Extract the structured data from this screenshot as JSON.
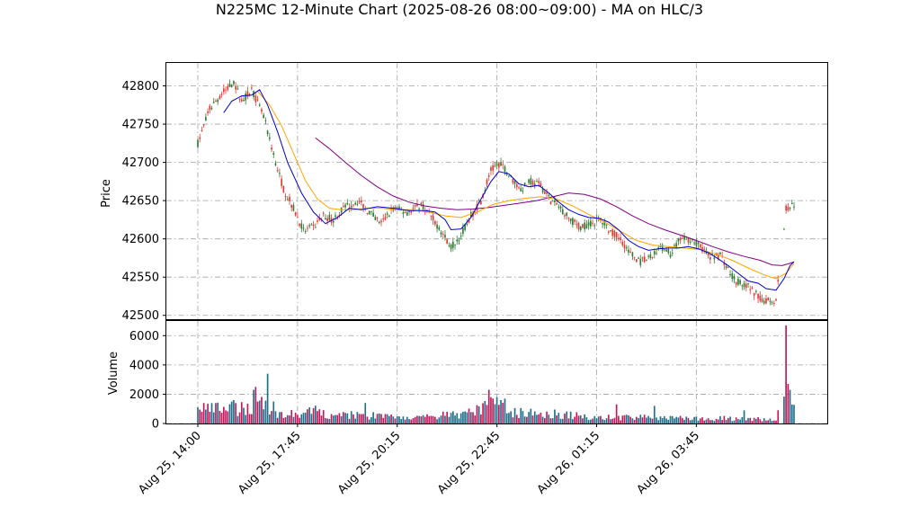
{
  "chart_data": {
    "type": "candlestick",
    "title": "N225MC 12-Minute Chart (2025-08-26 08:00~09:00) - MA on HLC/3",
    "ylabel_price": "Price",
    "ylabel_volume": "Volume",
    "price_ylim": [
      42495,
      42830
    ],
    "volume_ylim": [
      0,
      7000
    ],
    "price_ticks": [
      "42500",
      "42550",
      "42600",
      "42650",
      "42700",
      "42750",
      "42800"
    ],
    "volume_ticks": [
      "0",
      "2000",
      "4000",
      "6000"
    ],
    "x_ticks": [
      {
        "index": 0,
        "label": "Aug 25, 14:00"
      },
      {
        "index": 50,
        "label": "Aug 25, 17:45"
      },
      {
        "index": 100,
        "label": "Aug 25, 20:15"
      },
      {
        "index": 150,
        "label": "Aug 25, 22:45"
      },
      {
        "index": 200,
        "label": "Aug 26, 01:15"
      },
      {
        "index": 250,
        "label": "Aug 26, 03:45"
      }
    ],
    "bar_count": 300,
    "grid": true,
    "colors": {
      "up": "#2e7d32",
      "down": "#e53935",
      "volume_up": "#1f6f8b",
      "volume_down": "#c2185b",
      "ma_short": "#0000cc",
      "ma_mid": "#ffa500",
      "ma_long": "#800080"
    },
    "price_path": [
      [
        0,
        42725
      ],
      [
        6,
        42770
      ],
      [
        12,
        42790
      ],
      [
        18,
        42805
      ],
      [
        22,
        42780
      ],
      [
        27,
        42795
      ],
      [
        33,
        42760
      ],
      [
        38,
        42710
      ],
      [
        43,
        42665
      ],
      [
        48,
        42640
      ],
      [
        53,
        42610
      ],
      [
        58,
        42615
      ],
      [
        63,
        42630
      ],
      [
        68,
        42625
      ],
      [
        73,
        42640
      ],
      [
        80,
        42650
      ],
      [
        86,
        42635
      ],
      [
        92,
        42620
      ],
      [
        98,
        42640
      ],
      [
        105,
        42635
      ],
      [
        112,
        42645
      ],
      [
        117,
        42630
      ],
      [
        122,
        42610
      ],
      [
        127,
        42590
      ],
      [
        132,
        42605
      ],
      [
        137,
        42630
      ],
      [
        142,
        42650
      ],
      [
        147,
        42690
      ],
      [
        152,
        42700
      ],
      [
        157,
        42680
      ],
      [
        162,
        42665
      ],
      [
        167,
        42675
      ],
      [
        172,
        42670
      ],
      [
        177,
        42650
      ],
      [
        182,
        42640
      ],
      [
        187,
        42625
      ],
      [
        192,
        42615
      ],
      [
        197,
        42620
      ],
      [
        202,
        42625
      ],
      [
        207,
        42610
      ],
      [
        212,
        42600
      ],
      [
        217,
        42580
      ],
      [
        222,
        42570
      ],
      [
        227,
        42575
      ],
      [
        232,
        42590
      ],
      [
        237,
        42580
      ],
      [
        242,
        42600
      ],
      [
        247,
        42600
      ],
      [
        252,
        42590
      ],
      [
        257,
        42575
      ],
      [
        262,
        42580
      ],
      [
        266,
        42560
      ],
      [
        270,
        42545
      ],
      [
        275,
        42540
      ],
      [
        279,
        42530
      ],
      [
        283,
        42520
      ],
      [
        290,
        42520
      ],
      [
        295,
        42640
      ],
      [
        299,
        42645
      ]
    ],
    "ma_short": [
      [
        13,
        42765
      ],
      [
        17,
        42780
      ],
      [
        22,
        42787
      ],
      [
        27,
        42788
      ],
      [
        31,
        42795
      ],
      [
        35,
        42775
      ],
      [
        40,
        42740
      ],
      [
        45,
        42700
      ],
      [
        52,
        42660
      ],
      [
        58,
        42635
      ],
      [
        64,
        42620
      ],
      [
        70,
        42628
      ],
      [
        76,
        42640
      ],
      [
        82,
        42638
      ],
      [
        90,
        42642
      ],
      [
        98,
        42640
      ],
      [
        106,
        42637
      ],
      [
        114,
        42637
      ],
      [
        119,
        42635
      ],
      [
        124,
        42625
      ],
      [
        127,
        42612
      ],
      [
        132,
        42613
      ],
      [
        137,
        42628
      ],
      [
        142,
        42652
      ],
      [
        147,
        42675
      ],
      [
        151,
        42688
      ],
      [
        156,
        42685
      ],
      [
        161,
        42672
      ],
      [
        166,
        42668
      ],
      [
        171,
        42670
      ],
      [
        176,
        42660
      ],
      [
        181,
        42648
      ],
      [
        186,
        42638
      ],
      [
        191,
        42632
      ],
      [
        196,
        42628
      ],
      [
        201,
        42627
      ],
      [
        206,
        42622
      ],
      [
        211,
        42612
      ],
      [
        216,
        42598
      ],
      [
        221,
        42590
      ],
      [
        226,
        42585
      ],
      [
        231,
        42587
      ],
      [
        236,
        42588
      ],
      [
        241,
        42588
      ],
      [
        246,
        42590
      ],
      [
        251,
        42587
      ],
      [
        256,
        42582
      ],
      [
        261,
        42574
      ],
      [
        266,
        42565
      ],
      [
        271,
        42555
      ],
      [
        276,
        42545
      ],
      [
        281,
        42542
      ],
      [
        285,
        42535
      ],
      [
        290,
        42533
      ],
      [
        294,
        42548
      ],
      [
        297,
        42565
      ],
      [
        299,
        42570
      ]
    ],
    "ma_mid": [
      [
        30,
        42793
      ],
      [
        36,
        42775
      ],
      [
        42,
        42748
      ],
      [
        48,
        42712
      ],
      [
        54,
        42676
      ],
      [
        60,
        42652
      ],
      [
        66,
        42640
      ],
      [
        72,
        42638
      ],
      [
        78,
        42638
      ],
      [
        84,
        42640
      ],
      [
        92,
        42640
      ],
      [
        100,
        42638
      ],
      [
        108,
        42638
      ],
      [
        116,
        42635
      ],
      [
        124,
        42630
      ],
      [
        132,
        42628
      ],
      [
        140,
        42635
      ],
      [
        148,
        42645
      ],
      [
        156,
        42650
      ],
      [
        164,
        42653
      ],
      [
        172,
        42655
      ],
      [
        180,
        42652
      ],
      [
        188,
        42643
      ],
      [
        196,
        42632
      ],
      [
        204,
        42622
      ],
      [
        212,
        42610
      ],
      [
        220,
        42598
      ],
      [
        228,
        42592
      ],
      [
        236,
        42590
      ],
      [
        244,
        42588
      ],
      [
        252,
        42586
      ],
      [
        260,
        42580
      ],
      [
        268,
        42572
      ],
      [
        276,
        42562
      ],
      [
        284,
        42553
      ],
      [
        290,
        42548
      ],
      [
        295,
        42555
      ],
      [
        299,
        42568
      ]
    ],
    "ma_long": [
      [
        59,
        42732
      ],
      [
        66,
        42718
      ],
      [
        74,
        42700
      ],
      [
        82,
        42683
      ],
      [
        90,
        42668
      ],
      [
        98,
        42656
      ],
      [
        106,
        42648
      ],
      [
        114,
        42643
      ],
      [
        122,
        42640
      ],
      [
        130,
        42638
      ],
      [
        138,
        42639
      ],
      [
        146,
        42641
      ],
      [
        154,
        42644
      ],
      [
        162,
        42647
      ],
      [
        170,
        42650
      ],
      [
        178,
        42655
      ],
      [
        186,
        42660
      ],
      [
        194,
        42658
      ],
      [
        202,
        42652
      ],
      [
        210,
        42642
      ],
      [
        218,
        42630
      ],
      [
        226,
        42620
      ],
      [
        234,
        42612
      ],
      [
        242,
        42605
      ],
      [
        250,
        42598
      ],
      [
        258,
        42590
      ],
      [
        266,
        42583
      ],
      [
        274,
        42577
      ],
      [
        282,
        42572
      ],
      [
        288,
        42566
      ],
      [
        293,
        42565
      ],
      [
        297,
        42568
      ],
      [
        299,
        42570
      ]
    ],
    "volume_path": [
      [
        0,
        900
      ],
      [
        10,
        1000
      ],
      [
        20,
        1000
      ],
      [
        27,
        1200
      ],
      [
        30,
        2000
      ],
      [
        33,
        1200
      ],
      [
        38,
        700
      ],
      [
        45,
        600
      ],
      [
        55,
        700
      ],
      [
        60,
        900
      ],
      [
        65,
        500
      ],
      [
        80,
        600
      ],
      [
        90,
        500
      ],
      [
        100,
        450
      ],
      [
        110,
        350
      ],
      [
        120,
        500
      ],
      [
        125,
        600
      ],
      [
        130,
        550
      ],
      [
        140,
        900
      ],
      [
        146,
        1500
      ],
      [
        150,
        1300
      ],
      [
        155,
        800
      ],
      [
        165,
        700
      ],
      [
        175,
        700
      ],
      [
        185,
        600
      ],
      [
        195,
        450
      ],
      [
        205,
        400
      ],
      [
        215,
        450
      ],
      [
        225,
        400
      ],
      [
        235,
        350
      ],
      [
        245,
        350
      ],
      [
        255,
        320
      ],
      [
        265,
        350
      ],
      [
        275,
        280
      ],
      [
        285,
        300
      ],
      [
        290,
        300
      ],
      [
        295,
        2500
      ],
      [
        299,
        2000
      ]
    ],
    "volume_spikes": [
      [
        3,
        1400
      ],
      [
        18,
        1600
      ],
      [
        28,
        2300
      ],
      [
        29,
        2500
      ],
      [
        35,
        3400
      ],
      [
        38,
        1500
      ],
      [
        56,
        1100
      ],
      [
        84,
        1400
      ],
      [
        146,
        2300
      ],
      [
        150,
        1800
      ],
      [
        154,
        1700
      ],
      [
        210,
        1300
      ],
      [
        229,
        1200
      ],
      [
        274,
        900
      ],
      [
        293,
        2200
      ],
      [
        295,
        6700
      ],
      [
        296,
        2700
      ],
      [
        297,
        2300
      ]
    ]
  }
}
